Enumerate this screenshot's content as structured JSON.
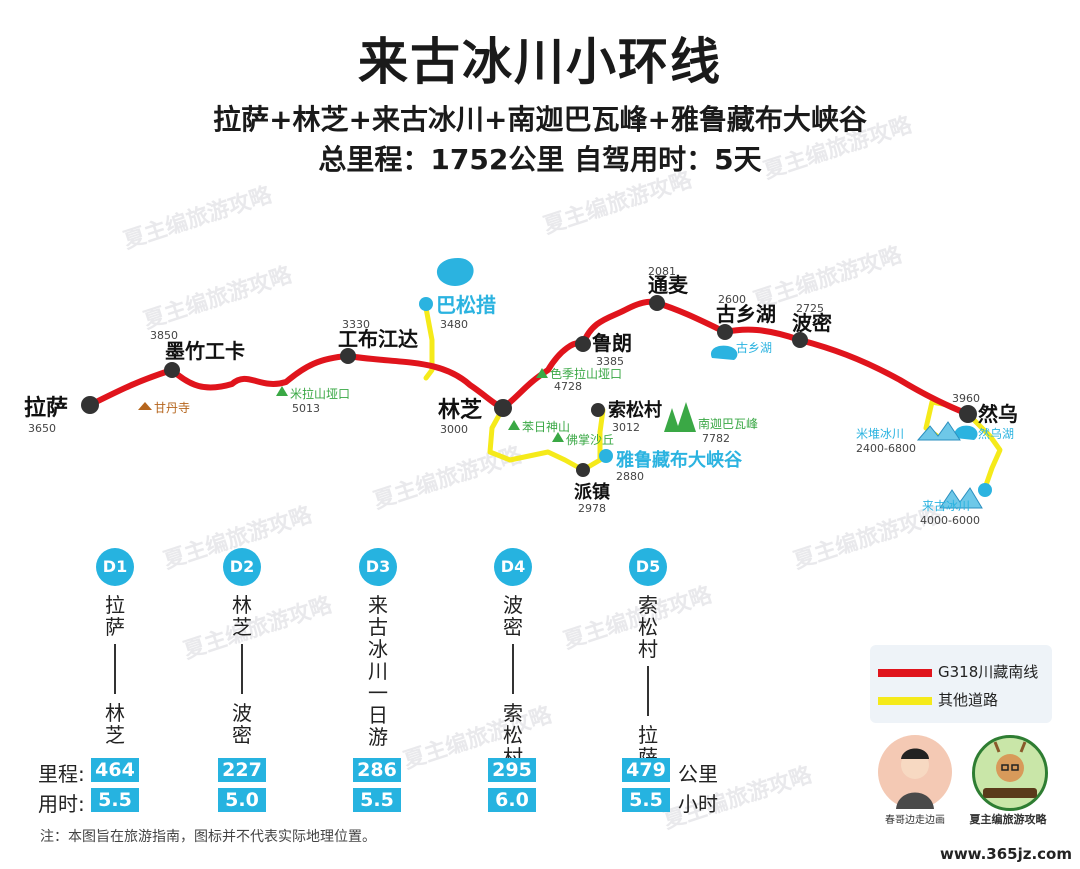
{
  "title": "来古冰川小环线",
  "subtitle1": "拉萨+林芝+来古冰川+南迦巴瓦峰+雅鲁藏布大峡谷",
  "subtitle2": "总里程：1752公里  自驾用时：5天",
  "watermark": "夏主编旅游攻略",
  "map": {
    "cities": {
      "lhasa": {
        "name": "拉萨",
        "alt": "3650"
      },
      "mozhu": {
        "name": "墨竹工卡",
        "alt": "3850"
      },
      "gongbu": {
        "name": "工布江达",
        "alt": "3330"
      },
      "linzhi": {
        "name": "林芝",
        "alt": "3000"
      },
      "lulang": {
        "name": "鲁朗",
        "alt": "3385"
      },
      "tongmai": {
        "name": "通麦",
        "alt": "2081"
      },
      "guxiang": {
        "name": "古乡湖",
        "alt": "2600"
      },
      "bomi": {
        "name": "波密",
        "alt": "2725"
      },
      "ranwu": {
        "name": "然乌",
        "alt": "3960"
      },
      "suosong": {
        "name": "索松村",
        "alt": "3012"
      },
      "paizhen": {
        "name": "派镇",
        "alt": "2978"
      }
    },
    "pois": {
      "basongcuo": {
        "name": "巴松措",
        "alt": "3480"
      },
      "ganding": {
        "name": "甘丹寺"
      },
      "milashan": {
        "name": "米拉山垭口",
        "alt": "5013"
      },
      "sejila": {
        "name": "色季拉山垭口",
        "alt": "4728"
      },
      "benri": {
        "name": "苯日神山"
      },
      "fozhang": {
        "name": "佛掌沙丘"
      },
      "namjagbarwa": {
        "name": "南迦巴瓦峰",
        "alt": "7782"
      },
      "yarlung": {
        "name": "雅鲁藏布大峡谷",
        "alt": "2880"
      },
      "guxianghu": {
        "name": "古乡湖"
      },
      "miduiglacier": {
        "name": "米堆冰川",
        "alt": "2400-6800"
      },
      "ranwulake": {
        "name": "然乌湖"
      },
      "laiguglacier": {
        "name": "来古冰川",
        "alt": "4000-6000"
      }
    }
  },
  "days": [
    {
      "label": "D1",
      "from": "拉萨",
      "to": "林芝",
      "distance": "464",
      "hours": "5.5"
    },
    {
      "label": "D2",
      "from": "林芝",
      "to": "波密",
      "distance": "227",
      "hours": "5.0"
    },
    {
      "label": "D3",
      "from": "来古冰川一日游",
      "to": "",
      "distance": "286",
      "hours": "5.5"
    },
    {
      "label": "D4",
      "from": "波密",
      "to": "索松村",
      "distance": "295",
      "hours": "6.0"
    },
    {
      "label": "D5",
      "from": "索松村",
      "to": "拉萨",
      "distance": "479",
      "hours": "5.5"
    }
  ],
  "stats_labels": {
    "distance": "里程:",
    "hours": "用时:",
    "km_unit": "公里",
    "hour_unit": "小时"
  },
  "legend": {
    "main": "G318川藏南线",
    "other": "其他道路",
    "main_color": "#e0141c",
    "other_color": "#f5ea1a"
  },
  "authors": {
    "left": "春哥边走边画",
    "right": "夏主编旅游攻略",
    "badge": "夏主编旅游攻略"
  },
  "note": "注：本图旨在旅游指南，图标并不代表实际地理位置。",
  "site": "www.365jz.com"
}
